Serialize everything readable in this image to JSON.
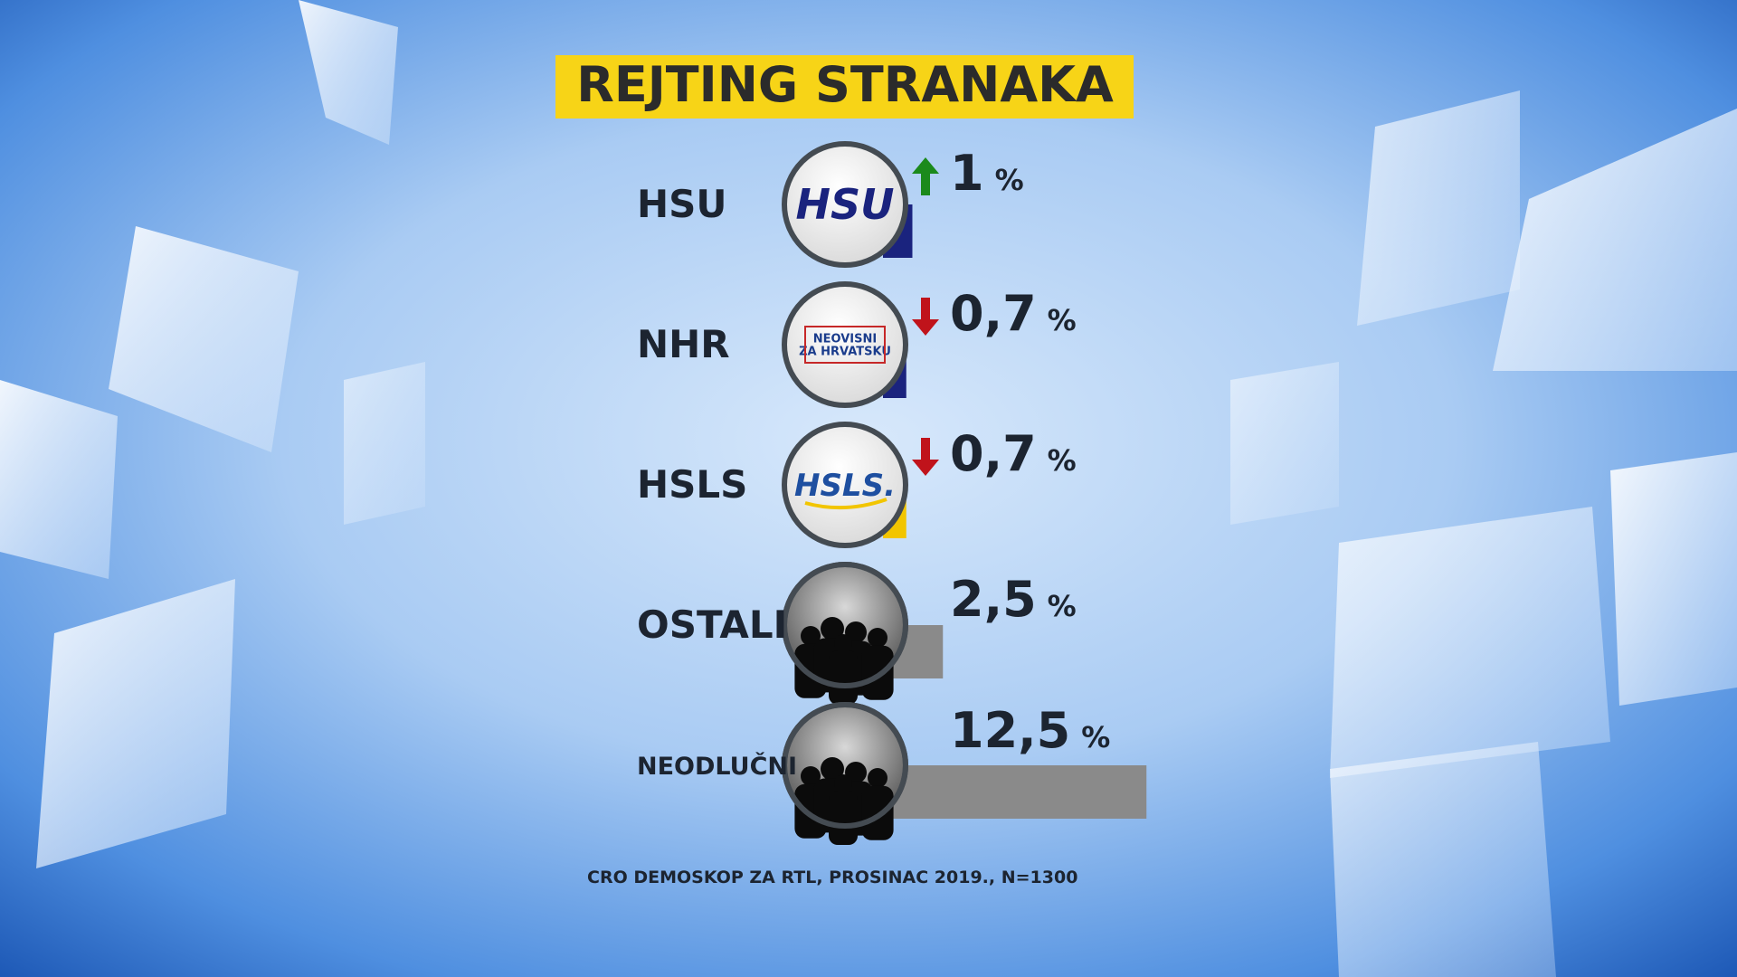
{
  "chart_data": {
    "type": "bar",
    "title": "REJTING STRANAKA",
    "categories": [
      "HSU",
      "NHR",
      "HSLS",
      "OSTALI",
      "NEODLUČNI"
    ],
    "values": [
      1,
      0.7,
      0.7,
      2.5,
      12.5
    ],
    "value_labels": [
      "1",
      "0,7",
      "0,7",
      "2,5",
      "12,5"
    ],
    "unit": "%",
    "trend": [
      "up",
      "down",
      "down",
      null,
      null
    ],
    "colors": [
      "#1a237e",
      "#1a237e",
      "#f2c500",
      "#8a8a8a",
      "#8a8a8a"
    ],
    "logos": [
      [
        "HSU"
      ],
      [
        "NEOVISNI",
        "ZA HRVATSKU"
      ],
      [
        "HSLS."
      ],
      null,
      null
    ],
    "source": "CRO DEMOSKOP ZA RTL, PROSINAC 2019., N=1300"
  }
}
